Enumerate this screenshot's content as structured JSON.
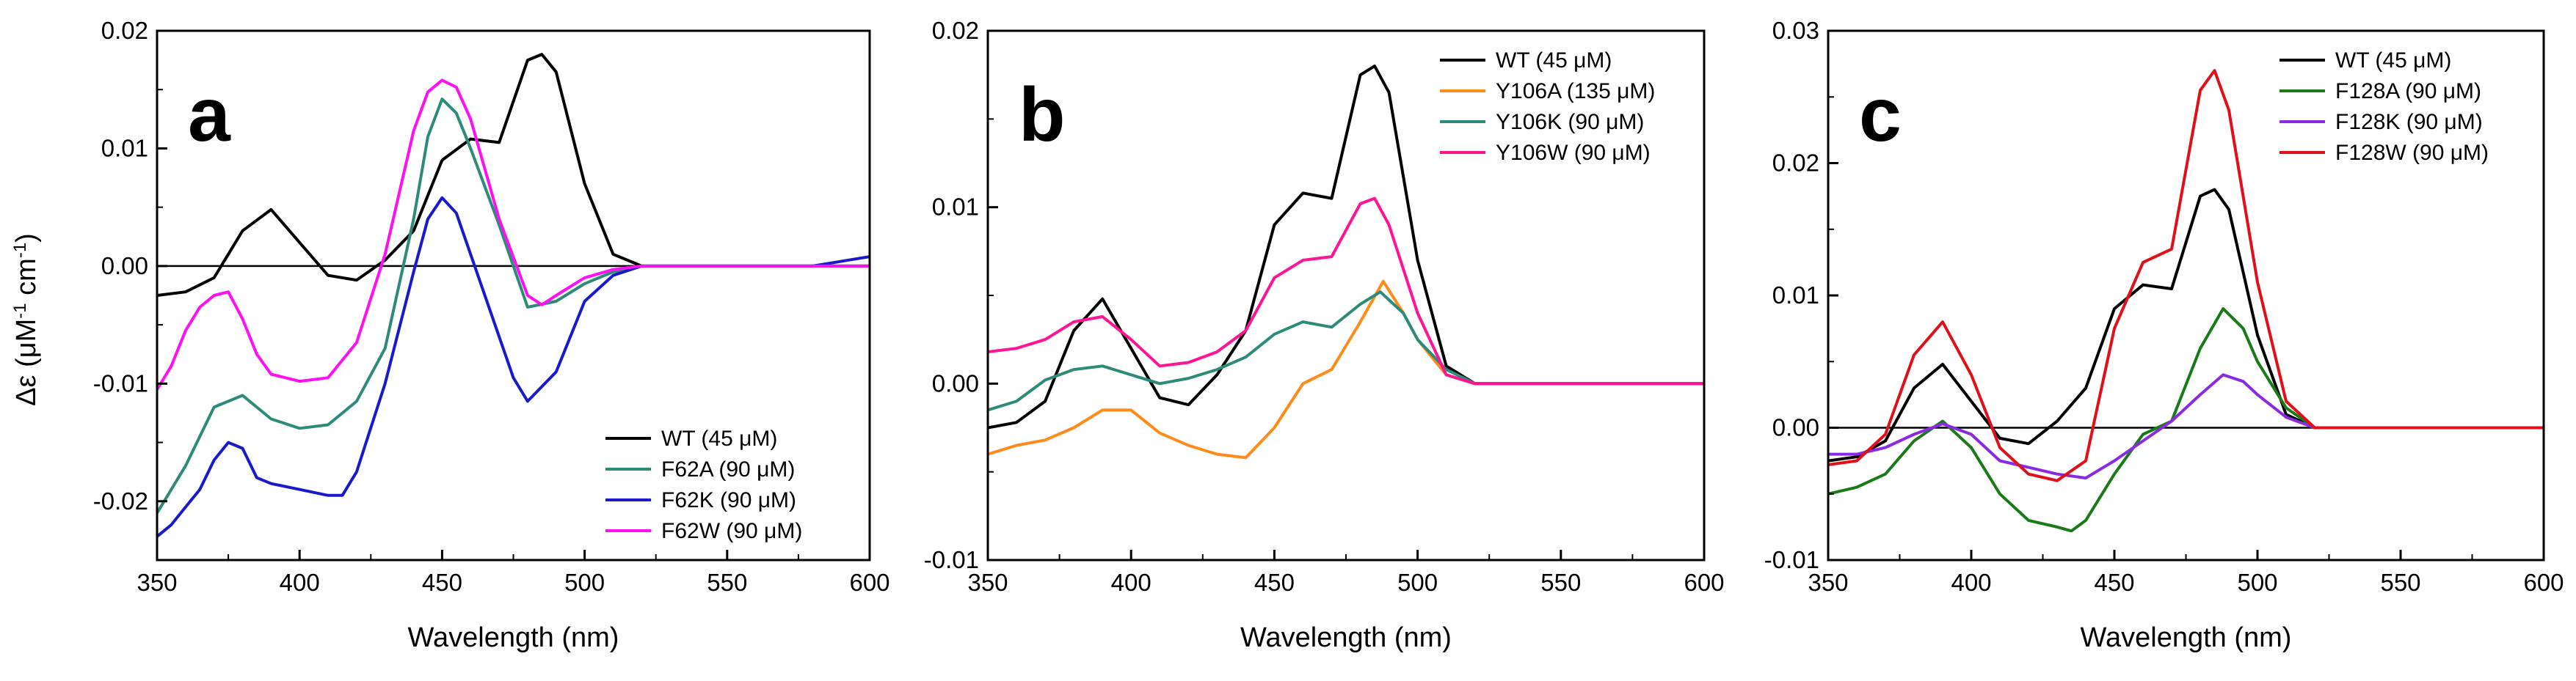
{
  "figure": {
    "ylabel_main": "Δε (μM",
    "ylabel_sup1": "-1",
    "ylabel_mid": " cm",
    "ylabel_sup2": "-1",
    "ylabel_end": ")"
  },
  "chart_data": [
    {
      "panel": "a",
      "type": "line",
      "xlabel": "Wavelength (nm)",
      "ylabel": "Δε (μM-1 cm-1)",
      "xlim": [
        350,
        600
      ],
      "ylim": [
        -0.025,
        0.02
      ],
      "xticks": [
        350,
        400,
        450,
        500,
        550,
        600
      ],
      "xtick_labels": [
        "350",
        "400",
        "450",
        "500",
        "550",
        "600"
      ],
      "yticks": [
        -0.02,
        -0.01,
        0.0,
        0.01,
        0.02
      ],
      "ytick_labels": [
        "-0.02",
        "-0.01",
        "0.00",
        "0.01",
        "0.02"
      ],
      "zero_line": true,
      "legend_position": "bottom-right",
      "series": [
        {
          "name": "WT (45 μM)",
          "color": "#000000",
          "x": [
            350,
            360,
            370,
            380,
            390,
            400,
            410,
            420,
            430,
            440,
            450,
            460,
            470,
            480,
            485,
            490,
            500,
            510,
            520,
            540,
            560,
            580,
            600
          ],
          "y": [
            -0.0025,
            -0.0022,
            -0.001,
            0.003,
            0.0048,
            0.002,
            -0.0008,
            -0.0012,
            0.0005,
            0.003,
            0.009,
            0.0108,
            0.0105,
            0.0175,
            0.018,
            0.0165,
            0.007,
            0.001,
            0.0,
            0.0,
            0.0,
            0.0,
            0.0
          ]
        },
        {
          "name": "F62A (90 μM)",
          "color": "#2e8b7a",
          "x": [
            350,
            360,
            370,
            380,
            390,
            400,
            410,
            420,
            430,
            440,
            445,
            450,
            455,
            460,
            470,
            480,
            490,
            500,
            510,
            520,
            540,
            560,
            580,
            600
          ],
          "y": [
            -0.021,
            -0.017,
            -0.012,
            -0.011,
            -0.013,
            -0.0138,
            -0.0135,
            -0.0115,
            -0.007,
            0.004,
            0.011,
            0.0142,
            0.013,
            0.01,
            0.0035,
            -0.0035,
            -0.003,
            -0.0015,
            -0.0005,
            0.0,
            0.0,
            0.0,
            0.0,
            0.0
          ]
        },
        {
          "name": "F62K (90 μM)",
          "color": "#1a1acc",
          "x": [
            350,
            355,
            360,
            365,
            370,
            375,
            380,
            385,
            390,
            400,
            410,
            415,
            420,
            430,
            440,
            445,
            450,
            455,
            460,
            470,
            475,
            480,
            490,
            500,
            510,
            520,
            540,
            560,
            580,
            600
          ],
          "y": [
            -0.023,
            -0.022,
            -0.0205,
            -0.019,
            -0.0165,
            -0.015,
            -0.0155,
            -0.018,
            -0.0185,
            -0.019,
            -0.0195,
            -0.0195,
            -0.0175,
            -0.01,
            -0.0005,
            0.004,
            0.0058,
            0.0045,
            0.001,
            -0.006,
            -0.0095,
            -0.0115,
            -0.009,
            -0.003,
            -0.0008,
            0.0,
            0.0,
            0.0,
            0.0,
            0.0008
          ]
        },
        {
          "name": "F62W (90 μM)",
          "color": "#ff10f0",
          "x": [
            350,
            355,
            360,
            365,
            370,
            375,
            380,
            385,
            390,
            400,
            410,
            420,
            430,
            440,
            445,
            450,
            455,
            460,
            470,
            480,
            485,
            490,
            500,
            510,
            520,
            540,
            560,
            580,
            600
          ],
          "y": [
            -0.0105,
            -0.0085,
            -0.0055,
            -0.0035,
            -0.0025,
            -0.0022,
            -0.0045,
            -0.0075,
            -0.0092,
            -0.0098,
            -0.0095,
            -0.0065,
            0.001,
            0.0115,
            0.0148,
            0.0158,
            0.0152,
            0.0125,
            0.004,
            -0.0025,
            -0.0033,
            -0.0025,
            -0.001,
            -0.0003,
            0.0,
            0.0,
            0.0,
            0.0,
            0.0
          ]
        }
      ]
    },
    {
      "panel": "b",
      "type": "line",
      "xlabel": "Wavelength (nm)",
      "ylabel": "",
      "xlim": [
        350,
        600
      ],
      "ylim": [
        -0.01,
        0.02
      ],
      "xticks": [
        350,
        400,
        450,
        500,
        550,
        600
      ],
      "xtick_labels": [
        "350",
        "400",
        "450",
        "500",
        "550",
        "600"
      ],
      "yticks": [
        -0.01,
        0.0,
        0.01,
        0.02
      ],
      "ytick_labels": [
        "-0.01",
        "0.00",
        "0.01",
        "0.02"
      ],
      "zero_line": false,
      "legend_position": "top-right",
      "series": [
        {
          "name": "WT (45 μM)",
          "color": "#000000",
          "x": [
            350,
            360,
            370,
            380,
            390,
            400,
            410,
            420,
            430,
            440,
            450,
            460,
            470,
            480,
            485,
            490,
            500,
            510,
            520,
            540,
            560,
            580,
            600
          ],
          "y": [
            -0.0025,
            -0.0022,
            -0.001,
            0.003,
            0.0048,
            0.002,
            -0.0008,
            -0.0012,
            0.0005,
            0.003,
            0.009,
            0.0108,
            0.0105,
            0.0175,
            0.018,
            0.0165,
            0.007,
            0.001,
            0.0,
            0.0,
            0.0,
            0.0,
            0.0
          ]
        },
        {
          "name": "Y106A (135 μM)",
          "color": "#ff8c1a",
          "x": [
            350,
            360,
            370,
            380,
            390,
            400,
            410,
            420,
            430,
            440,
            450,
            460,
            470,
            480,
            488,
            495,
            500,
            510,
            520,
            540,
            560,
            580,
            600
          ],
          "y": [
            -0.004,
            -0.0035,
            -0.0032,
            -0.0025,
            -0.0015,
            -0.0015,
            -0.0028,
            -0.0035,
            -0.004,
            -0.0042,
            -0.0025,
            0.0,
            0.0008,
            0.0035,
            0.0058,
            0.004,
            0.0025,
            0.0005,
            0.0,
            0.0,
            0.0,
            0.0,
            0.0
          ]
        },
        {
          "name": "Y106K (90 μM)",
          "color": "#2e8b7a",
          "x": [
            350,
            360,
            370,
            380,
            390,
            400,
            410,
            420,
            430,
            440,
            450,
            460,
            470,
            480,
            487,
            495,
            500,
            510,
            520,
            540,
            560,
            580,
            600
          ],
          "y": [
            -0.0015,
            -0.001,
            0.0002,
            0.0008,
            0.001,
            0.0005,
            0.0,
            0.0003,
            0.0008,
            0.0015,
            0.0028,
            0.0035,
            0.0032,
            0.0045,
            0.0052,
            0.004,
            0.0025,
            0.0008,
            0.0,
            0.0,
            0.0,
            0.0,
            0.0
          ]
        },
        {
          "name": "Y106W (90 μM)",
          "color": "#ff1493",
          "x": [
            350,
            360,
            370,
            380,
            390,
            400,
            410,
            420,
            430,
            440,
            450,
            460,
            470,
            480,
            485,
            490,
            500,
            510,
            520,
            540,
            560,
            580,
            600
          ],
          "y": [
            0.0018,
            0.002,
            0.0025,
            0.0035,
            0.0038,
            0.0025,
            0.001,
            0.0012,
            0.0018,
            0.003,
            0.006,
            0.007,
            0.0072,
            0.0102,
            0.0105,
            0.009,
            0.004,
            0.0005,
            0.0,
            0.0,
            0.0,
            0.0,
            0.0
          ]
        }
      ]
    },
    {
      "panel": "c",
      "type": "line",
      "xlabel": "Wavelength (nm)",
      "ylabel": "",
      "xlim": [
        350,
        600
      ],
      "ylim": [
        -0.01,
        0.03
      ],
      "xticks": [
        350,
        400,
        450,
        500,
        550,
        600
      ],
      "xtick_labels": [
        "350",
        "400",
        "450",
        "500",
        "550",
        "600"
      ],
      "yticks": [
        -0.01,
        0.0,
        0.01,
        0.02,
        0.03
      ],
      "ytick_labels": [
        "-0.01",
        "0.00",
        "0.01",
        "0.02",
        "0.03"
      ],
      "zero_line": true,
      "legend_position": "top-right",
      "series": [
        {
          "name": "WT (45 μM)",
          "color": "#000000",
          "x": [
            350,
            360,
            370,
            380,
            390,
            400,
            410,
            420,
            430,
            440,
            450,
            460,
            470,
            480,
            485,
            490,
            500,
            510,
            520,
            540,
            560,
            580,
            600
          ],
          "y": [
            -0.0025,
            -0.0022,
            -0.001,
            0.003,
            0.0048,
            0.002,
            -0.0008,
            -0.0012,
            0.0005,
            0.003,
            0.009,
            0.0108,
            0.0105,
            0.0175,
            0.018,
            0.0165,
            0.007,
            0.001,
            0.0,
            0.0,
            0.0,
            0.0,
            0.0
          ]
        },
        {
          "name": "F128A (90 μM)",
          "color": "#1a7a1a",
          "x": [
            350,
            360,
            370,
            380,
            390,
            400,
            410,
            420,
            430,
            435,
            440,
            450,
            460,
            470,
            480,
            488,
            495,
            500,
            510,
            520,
            540,
            560,
            580,
            600
          ],
          "y": [
            -0.005,
            -0.0045,
            -0.0035,
            -0.001,
            0.0005,
            -0.0015,
            -0.005,
            -0.007,
            -0.0075,
            -0.0078,
            -0.007,
            -0.0035,
            -0.0005,
            0.0005,
            0.006,
            0.009,
            0.0075,
            0.005,
            0.0015,
            0.0,
            0.0,
            0.0,
            0.0,
            0.0
          ]
        },
        {
          "name": "F128K (90 μM)",
          "color": "#8a2be2",
          "x": [
            350,
            360,
            370,
            380,
            390,
            400,
            410,
            420,
            430,
            440,
            450,
            460,
            470,
            480,
            488,
            495,
            500,
            510,
            520,
            540,
            560,
            580,
            600
          ],
          "y": [
            -0.002,
            -0.002,
            -0.0015,
            -0.0005,
            0.0003,
            -0.0005,
            -0.0025,
            -0.003,
            -0.0035,
            -0.0038,
            -0.0025,
            -0.001,
            0.0005,
            0.0025,
            0.004,
            0.0035,
            0.0025,
            0.0008,
            0.0,
            0.0,
            0.0,
            0.0,
            0.0
          ]
        },
        {
          "name": "F128W (90 μM)",
          "color": "#e0101a",
          "x": [
            350,
            360,
            370,
            380,
            390,
            400,
            410,
            420,
            430,
            440,
            450,
            460,
            470,
            480,
            485,
            490,
            500,
            510,
            520,
            540,
            560,
            580,
            600
          ],
          "y": [
            -0.0028,
            -0.0025,
            -0.0005,
            0.0055,
            0.008,
            0.004,
            -0.0015,
            -0.0035,
            -0.004,
            -0.0025,
            0.0075,
            0.0125,
            0.0135,
            0.0255,
            0.027,
            0.024,
            0.011,
            0.002,
            0.0,
            0.0,
            0.0,
            0.0,
            0.0
          ]
        }
      ]
    }
  ]
}
